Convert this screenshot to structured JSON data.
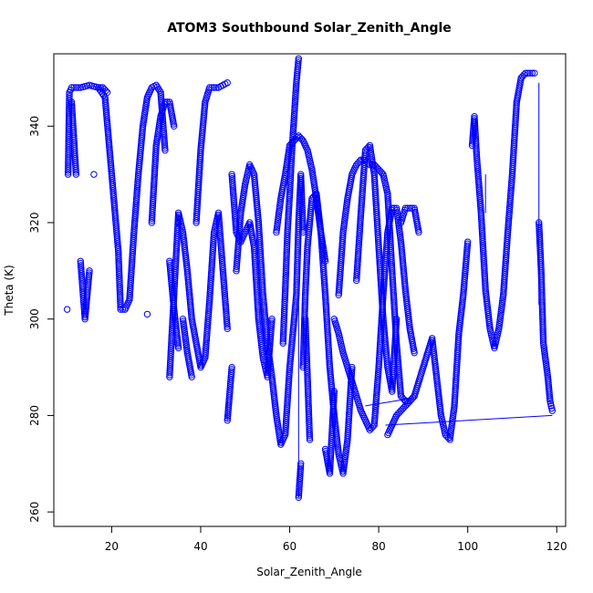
{
  "chart_data": {
    "type": "scatter",
    "title": "ATOM3 Southbound Solar_Zenith_Angle",
    "xlabel": "Solar_Zenith_Angle",
    "ylabel": "Theta (K)",
    "xlim": [
      7,
      122
    ],
    "ylim": [
      257,
      355
    ],
    "xticks": [
      20,
      40,
      60,
      80,
      100,
      120
    ],
    "yticks": [
      260,
      280,
      300,
      320,
      340
    ],
    "grid": false,
    "marker": "open-circle",
    "color": "#0000ff",
    "series": [
      {
        "points": [
          [
            10,
            302
          ],
          [
            10.2,
            330
          ],
          [
            10.5,
            347
          ],
          [
            11,
            348
          ],
          [
            13,
            348
          ],
          [
            15,
            348.5
          ],
          [
            17,
            348
          ],
          [
            18.5,
            346
          ],
          [
            20,
            330
          ],
          [
            21.5,
            314
          ],
          [
            22,
            302
          ],
          [
            23,
            302
          ],
          [
            24,
            304
          ],
          [
            25,
            318
          ],
          [
            26,
            330
          ],
          [
            27,
            340
          ],
          [
            28,
            346
          ],
          [
            29,
            348
          ],
          [
            30,
            348.5
          ],
          [
            31,
            347
          ],
          [
            32,
            335
          ],
          [
            33,
            312
          ],
          [
            34,
            302
          ],
          [
            35,
            294
          ],
          [
            11,
            345
          ],
          [
            12,
            330
          ],
          [
            13,
            312
          ],
          [
            14,
            300
          ],
          [
            15,
            310
          ],
          [
            16,
            330
          ],
          [
            17,
            348
          ],
          [
            18,
            348
          ],
          [
            19,
            347
          ],
          [
            28,
            301
          ],
          [
            29,
            320
          ],
          [
            30,
            336
          ],
          [
            31,
            342
          ],
          [
            32,
            345
          ],
          [
            33,
            345
          ],
          [
            34,
            340
          ],
          [
            35,
            320
          ],
          [
            36,
            300
          ],
          [
            37,
            293
          ],
          [
            38,
            288
          ],
          [
            39,
            320
          ],
          [
            40,
            335
          ],
          [
            41,
            345
          ],
          [
            42,
            348
          ],
          [
            43,
            348
          ],
          [
            44,
            348
          ],
          [
            45,
            348.5
          ],
          [
            46,
            349
          ],
          [
            47,
            330
          ],
          [
            48,
            318
          ],
          [
            49,
            316
          ],
          [
            50,
            318
          ],
          [
            51,
            320
          ],
          [
            52,
            315
          ],
          [
            53,
            300
          ],
          [
            54,
            292
          ],
          [
            55,
            288
          ],
          [
            56,
            300
          ],
          [
            57,
            318
          ],
          [
            58,
            325
          ],
          [
            59,
            330
          ],
          [
            60,
            336
          ],
          [
            61,
            337
          ],
          [
            62,
            338
          ],
          [
            63,
            337
          ],
          [
            64,
            335
          ],
          [
            65,
            331
          ],
          [
            66,
            325
          ],
          [
            67,
            318
          ],
          [
            68,
            312
          ],
          [
            33,
            288
          ],
          [
            34,
            305
          ],
          [
            35,
            322
          ],
          [
            36,
            318
          ],
          [
            37,
            310
          ],
          [
            38,
            300
          ],
          [
            39,
            295
          ],
          [
            40,
            290
          ],
          [
            41,
            292
          ],
          [
            42,
            304
          ],
          [
            43,
            318
          ],
          [
            44,
            322
          ],
          [
            45,
            310
          ],
          [
            46,
            298
          ],
          [
            46,
            279
          ],
          [
            47,
            290
          ],
          [
            48,
            310
          ],
          [
            49,
            322
          ],
          [
            50,
            328
          ],
          [
            51,
            332
          ],
          [
            52,
            330
          ],
          [
            53,
            320
          ],
          [
            54,
            305
          ],
          [
            55,
            295
          ],
          [
            56,
            288
          ],
          [
            57,
            280
          ],
          [
            58,
            274
          ],
          [
            59,
            276
          ],
          [
            60,
            290
          ],
          [
            61,
            300
          ],
          [
            61.5,
            305
          ],
          [
            62,
            320
          ],
          [
            62.5,
            330
          ],
          [
            63,
            318
          ],
          [
            63.5,
            300
          ],
          [
            64,
            288
          ],
          [
            64.5,
            275
          ],
          [
            62,
            354
          ],
          [
            61.5,
            349
          ],
          [
            61,
            342
          ],
          [
            60.5,
            335
          ],
          [
            60,
            326
          ],
          [
            59.5,
            318
          ],
          [
            59,
            306
          ],
          [
            58.5,
            295
          ],
          [
            62,
            263
          ],
          [
            62.5,
            270
          ],
          [
            63,
            290
          ],
          [
            63.5,
            305
          ],
          [
            64,
            315
          ],
          [
            65,
            325
          ],
          [
            66,
            326
          ],
          [
            67,
            318
          ],
          [
            68,
            305
          ],
          [
            69,
            290
          ],
          [
            70,
            280
          ],
          [
            71,
            272
          ],
          [
            72,
            268
          ],
          [
            73,
            275
          ],
          [
            74,
            290
          ],
          [
            75,
            308
          ],
          [
            76,
            322
          ],
          [
            77,
            335
          ],
          [
            78,
            336
          ],
          [
            79,
            330
          ],
          [
            80,
            315
          ],
          [
            81,
            300
          ],
          [
            82,
            290
          ],
          [
            83,
            285
          ],
          [
            84,
            300
          ],
          [
            85,
            320
          ],
          [
            86,
            323
          ],
          [
            87,
            323
          ],
          [
            88,
            323
          ],
          [
            89,
            318
          ],
          [
            68,
            273
          ],
          [
            69,
            268
          ],
          [
            70,
            285
          ],
          [
            71,
            305
          ],
          [
            72,
            318
          ],
          [
            73,
            325
          ],
          [
            74,
            330
          ],
          [
            75,
            332
          ],
          [
            76,
            333
          ],
          [
            77,
            333
          ],
          [
            78,
            332
          ],
          [
            79,
            332
          ],
          [
            80,
            331
          ],
          [
            81,
            330
          ],
          [
            82,
            326
          ],
          [
            83,
            310
          ],
          [
            84,
            295
          ],
          [
            85,
            284
          ],
          [
            86,
            283
          ],
          [
            87,
            283
          ],
          [
            88,
            284
          ],
          [
            70,
            300
          ],
          [
            71,
            297
          ],
          [
            72,
            293
          ],
          [
            73,
            290
          ],
          [
            74,
            287
          ],
          [
            75,
            284
          ],
          [
            76,
            281
          ],
          [
            77,
            279
          ],
          [
            78,
            277
          ],
          [
            79,
            278
          ],
          [
            80,
            290
          ],
          [
            81,
            305
          ],
          [
            82,
            318
          ],
          [
            83,
            323
          ],
          [
            84,
            323
          ],
          [
            85,
            316
          ],
          [
            86,
            306
          ],
          [
            87,
            298
          ],
          [
            88,
            293
          ],
          [
            82,
            276
          ],
          [
            83,
            278
          ],
          [
            84,
            280
          ],
          [
            85,
            281
          ],
          [
            86,
            282
          ],
          [
            87,
            283
          ],
          [
            88,
            284
          ],
          [
            92,
            296
          ],
          [
            93,
            288
          ],
          [
            94,
            280
          ],
          [
            95,
            276
          ],
          [
            96,
            275
          ],
          [
            97,
            282
          ],
          [
            98,
            297
          ],
          [
            99,
            305
          ],
          [
            100,
            316
          ],
          [
            101,
            336
          ],
          [
            101.5,
            342
          ],
          [
            102,
            334
          ],
          [
            103,
            322
          ],
          [
            104,
            306
          ],
          [
            105,
            298
          ],
          [
            106,
            294
          ],
          [
            107,
            298
          ],
          [
            108,
            305
          ],
          [
            109,
            318
          ],
          [
            110,
            330
          ],
          [
            111,
            345
          ],
          [
            112,
            350
          ],
          [
            113,
            351
          ],
          [
            114,
            351
          ],
          [
            115,
            351
          ],
          [
            116,
            320
          ],
          [
            116.5,
            310
          ],
          [
            117,
            295
          ],
          [
            118,
            288
          ],
          [
            118.5,
            283
          ],
          [
            119,
            281
          ]
        ]
      }
    ],
    "lines": [
      {
        "from": [
          81.5,
          278
        ],
        "to": [
          119,
          280
        ]
      },
      {
        "from": [
          77,
          282
        ],
        "to": [
          87,
          283.5
        ]
      },
      {
        "from": [
          116,
          349
        ],
        "to": [
          116,
          303
        ]
      },
      {
        "from": [
          46,
          283
        ],
        "to": [
          46,
          279
        ]
      },
      {
        "from": [
          62,
          305
        ],
        "to": [
          62,
          263
        ]
      },
      {
        "from": [
          104,
          322
        ],
        "to": [
          104,
          330
        ]
      }
    ]
  }
}
